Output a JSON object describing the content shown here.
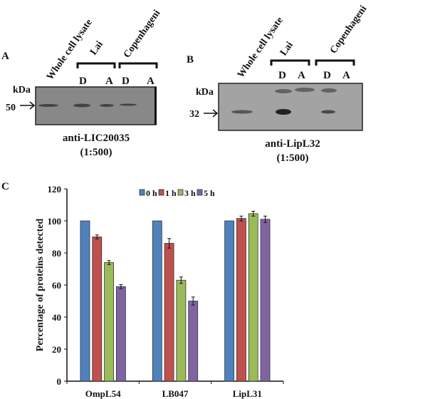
{
  "panel_a": {
    "letter": "A",
    "lanes": [
      "Whole cell lysate",
      "Lai",
      "Copenhageni"
    ],
    "sublanes": [
      "D",
      "A",
      "D",
      "A"
    ],
    "kda_label": "kDa",
    "marker": "50",
    "antibody": "anti-LIC20035",
    "dilution": "(1:500)"
  },
  "panel_b": {
    "letter": "B",
    "lanes": [
      "Whole cell lysate",
      "Lai",
      "Copenhageni"
    ],
    "sublanes": [
      "D",
      "A",
      "D",
      "A"
    ],
    "kda_label": "kDa",
    "marker": "32",
    "antibody": "anti-LipL32",
    "dilution": "(1:500)"
  },
  "chart_data": {
    "panel_letter": "C",
    "type": "bar",
    "title": "",
    "xlabel": "",
    "ylabel": "Percentage of proteins detected",
    "ylim": [
      0,
      120
    ],
    "yticks": [
      0,
      20,
      40,
      60,
      80,
      100,
      120
    ],
    "categories": [
      "OmpL54",
      "LB047",
      "LipL31"
    ],
    "legend_position": "top-center",
    "series": [
      {
        "name": "0 h",
        "color": "#4f81bd",
        "values": [
          100,
          100,
          100
        ],
        "errors": [
          0,
          0,
          0
        ]
      },
      {
        "name": "1 h",
        "color": "#c0504d",
        "values": [
          90,
          86,
          101.5
        ],
        "errors": [
          1.2,
          3,
          1.5
        ]
      },
      {
        "name": "3 h",
        "color": "#9bbb59",
        "values": [
          74,
          63,
          104.5
        ],
        "errors": [
          1.2,
          2,
          1.5
        ]
      },
      {
        "name": "5 h",
        "color": "#8064a2",
        "values": [
          59,
          50,
          101
        ],
        "errors": [
          1.2,
          2.5,
          2
        ]
      }
    ]
  }
}
